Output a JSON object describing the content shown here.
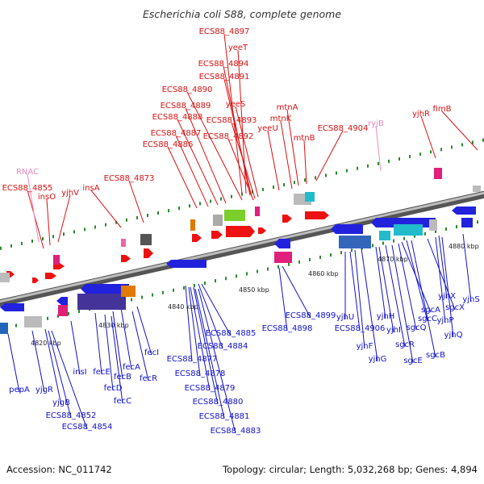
{
  "title": "Escherichia coli S88, complete genome",
  "footer": {
    "accession": "Accession: NC_011742",
    "summary": "Topology: circular; Length: 5,032,268 bp; Genes: 4,894"
  },
  "scale_ticks": [
    "4820 kbp",
    "4830 kbp",
    "4840 kbp",
    "4850 kbp",
    "4860 kbp",
    "4870 kbp",
    "4880 kbp"
  ],
  "colors": {
    "forward_label": "#dd1111",
    "reverse_label": "#1111cc",
    "rna_label": "#ee88bb",
    "backbone": "#8a8a8a",
    "forward_gene": "#ee1111",
    "reverse_gene": "#2222dd"
  },
  "forward_labels": [
    "ECS88_4897",
    "yeeT",
    "ECS88_4894",
    "ECS88_4891",
    "ECS88_4890",
    "yeeS",
    "ECS88_4889",
    "ECS88_4888",
    "ECS88_4893",
    "ECS88_4887",
    "ECS88_4892",
    "ECS88_4886",
    "mtnA",
    "mtnK",
    "yeeU",
    "ECS88_4904",
    "mtnB",
    "yjhR",
    "fimB",
    "ECS88_4873",
    "ECS88_4855",
    "insO",
    "yjhV",
    "insA"
  ],
  "rna_labels": [
    "RNAC",
    "ryjB"
  ],
  "reverse_labels": [
    "fecI",
    "fecA",
    "fecR",
    "fecB",
    "fecE",
    "fecD",
    "fecC",
    "insI",
    "pepA",
    "yjgR",
    "yjgB",
    "ECS88_4852",
    "ECS88_4854",
    "ECS88_4885",
    "ECS88_4884",
    "ECS88_4877",
    "ECS88_4878",
    "ECS88_4879",
    "ECS88_4880",
    "ECS88_4881",
    "ECS88_4883",
    "ECS88_4899",
    "ECS88_4898",
    "yjhU",
    "ECS88_4906",
    "yjhF",
    "yjhG",
    "yjhH",
    "yjhI",
    "sgcR",
    "sgcE",
    "sgcA",
    "sgcQ",
    "sgcC",
    "sgcB",
    "sgcX",
    "yjhP",
    "yjhQ",
    "yjhX",
    "yjhS"
  ]
}
